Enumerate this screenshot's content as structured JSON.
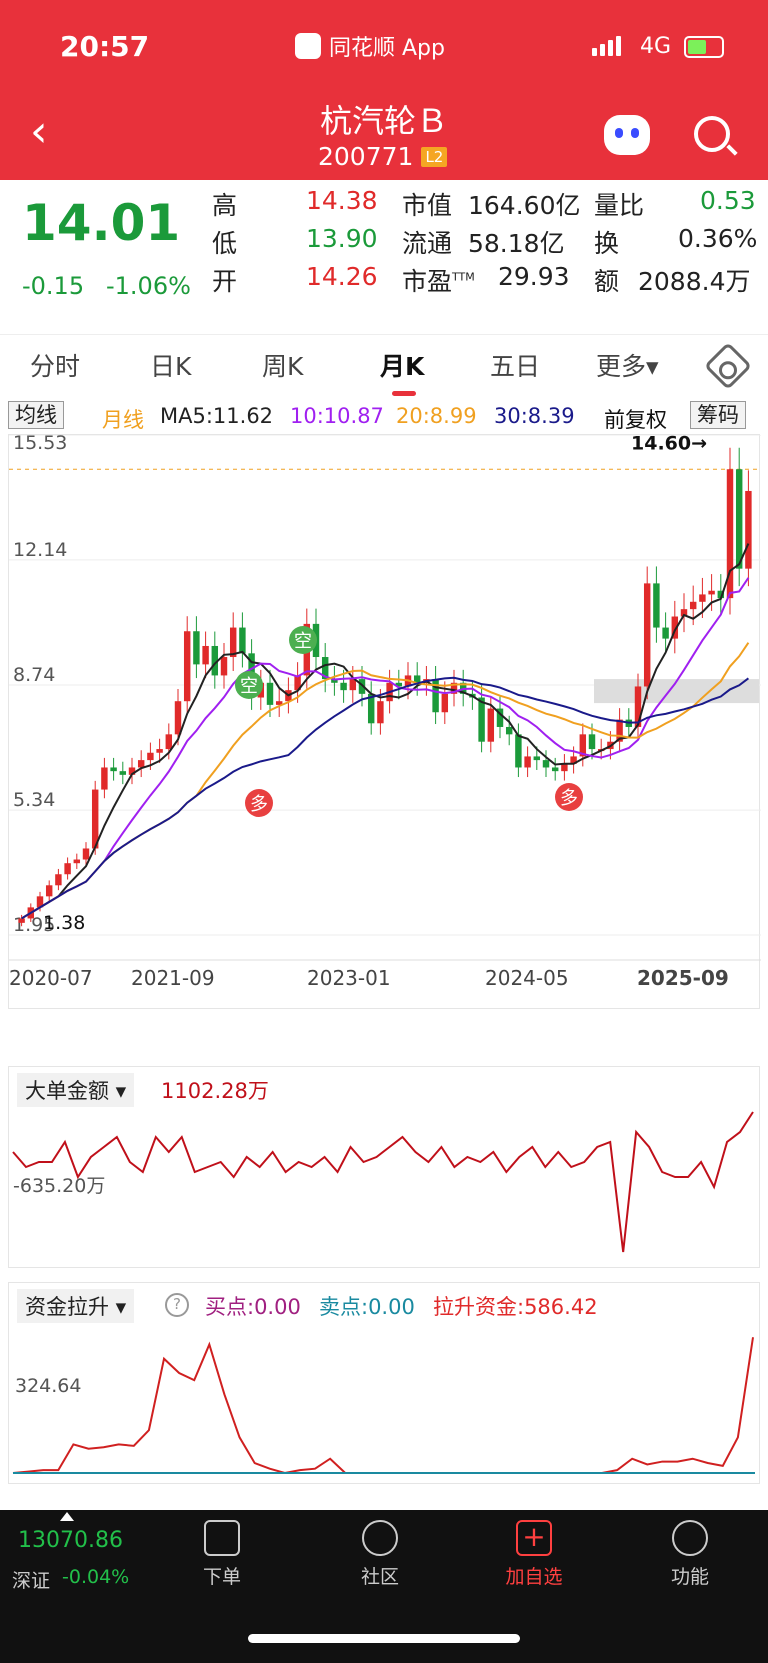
{
  "status": {
    "time": "20:57",
    "app": "同花顺 App",
    "network": "4G"
  },
  "stock": {
    "name": "杭汽轮Ｂ",
    "code": "200771",
    "level": "L2"
  },
  "quote": {
    "price": "14.01",
    "change": "-0.15",
    "change_pct": "-1.06%",
    "high_label": "高",
    "high": "14.38",
    "low_label": "低",
    "low": "13.90",
    "open_label": "开",
    "open": "14.26",
    "mcap_label": "市值",
    "mcap": "164.60亿",
    "float_label": "流通",
    "float": "58.18亿",
    "pe_label": "市盈",
    "pe_sup": "TTM",
    "pe": "29.93",
    "vr_label": "量比",
    "vr": "0.53",
    "turn_label": "换",
    "turn": "0.36%",
    "amt_label": "额",
    "amt": "2088.4万"
  },
  "tabs": [
    "分时",
    "日K",
    "周K",
    "月K",
    "五日",
    "更多▾"
  ],
  "ma": {
    "btn": "均线",
    "period": "月线",
    "ma5": "MA5:11.62",
    "ma10": "10:10.87",
    "ma20": "20:8.99",
    "ma30": "30:8.39",
    "adj": "前复权",
    "chip": "筹码"
  },
  "colors": {
    "up": "#e02a2a",
    "down": "#1b9a3a",
    "ma5": "#222",
    "ma10": "#a020f0",
    "ma20": "#f0a020",
    "ma30": "#1a1a8a"
  },
  "chart_data": {
    "type": "candlestick",
    "y_ticks": [
      "15.53",
      "12.14",
      "8.74",
      "5.34",
      "1.95"
    ],
    "ylim": [
      1.95,
      15.53
    ],
    "x_ticks": [
      "2020-07",
      "2021-09",
      "2023-01",
      "2024-05",
      "2025-09"
    ],
    "last_label": "14.60→",
    "low_label": "1.38",
    "markers": [
      "空",
      "空",
      "多",
      "多"
    ],
    "close": [
      2.4,
      2.7,
      3.0,
      3.3,
      3.6,
      3.9,
      4.0,
      4.3,
      5.9,
      6.5,
      6.4,
      6.3,
      6.5,
      6.7,
      6.9,
      7.0,
      7.4,
      8.3,
      10.2,
      9.3,
      9.8,
      9.0,
      9.5,
      10.3,
      9.6,
      8.4,
      8.8,
      8.2,
      8.3,
      8.6,
      9.0,
      10.4,
      9.5,
      8.9,
      8.8,
      8.6,
      8.9,
      8.5,
      7.7,
      8.3,
      8.8,
      8.7,
      9.0,
      8.8,
      8.9,
      8.0,
      8.5,
      8.8,
      8.5,
      8.4,
      7.2,
      8.1,
      7.6,
      7.4,
      6.5,
      6.8,
      6.7,
      6.5,
      6.4,
      6.6,
      6.8,
      7.4,
      7.0,
      7.0,
      7.2,
      7.8,
      7.6,
      8.7,
      11.5,
      10.3,
      10.0,
      10.6,
      10.8,
      11.0,
      11.2,
      11.3,
      11.1,
      14.6,
      11.9,
      14.01
    ]
  },
  "panel1": {
    "title": "大单金额",
    "value": "1102.28万",
    "axis": "-635.20万",
    "series": [
      0.5,
      0.2,
      0.3,
      0.3,
      0.7,
      0.0,
      0.4,
      0.6,
      0.8,
      0.3,
      0.1,
      0.8,
      0.5,
      0.8,
      0.1,
      0.2,
      0.3,
      0.0,
      0.4,
      0.2,
      0.5,
      0.1,
      0.3,
      0.2,
      0.4,
      0.1,
      0.6,
      0.3,
      0.4,
      0.6,
      0.8,
      0.5,
      0.3,
      0.6,
      0.2,
      0.4,
      0.3,
      0.5,
      0.1,
      0.4,
      0.6,
      0.2,
      0.5,
      0.2,
      0.3,
      0.6,
      0.7,
      -1.5,
      0.9,
      0.6,
      0.1,
      0.0,
      0.0,
      0.3,
      -0.2,
      0.7,
      0.9,
      1.3
    ]
  },
  "panel2": {
    "title": "资金拉升",
    "help": "?",
    "buy": "买点:0.00",
    "sell": "卖点:0.00",
    "lift": "拉升资金:586.42",
    "axis": "324.64",
    "series": [
      0,
      0.01,
      0.02,
      0.02,
      0.2,
      0.17,
      0.18,
      0.2,
      0.19,
      0.3,
      0.8,
      0.7,
      0.65,
      0.9,
      0.55,
      0.25,
      0.07,
      0.03,
      0.0,
      0.02,
      0.03,
      0.1,
      0.0,
      0,
      0,
      0,
      0,
      0,
      0,
      0,
      0,
      0,
      0,
      0,
      0,
      0,
      0,
      0,
      0,
      0,
      0.02,
      0.1,
      0.06,
      0.08,
      0.08,
      0.1,
      0.07,
      0.05,
      0.25,
      0.95
    ]
  },
  "bottom": {
    "index": "13070.86",
    "index_name": "深证",
    "index_chg": "-0.04%",
    "order": "下单",
    "community": "社区",
    "add": "加自选",
    "func": "功能"
  }
}
